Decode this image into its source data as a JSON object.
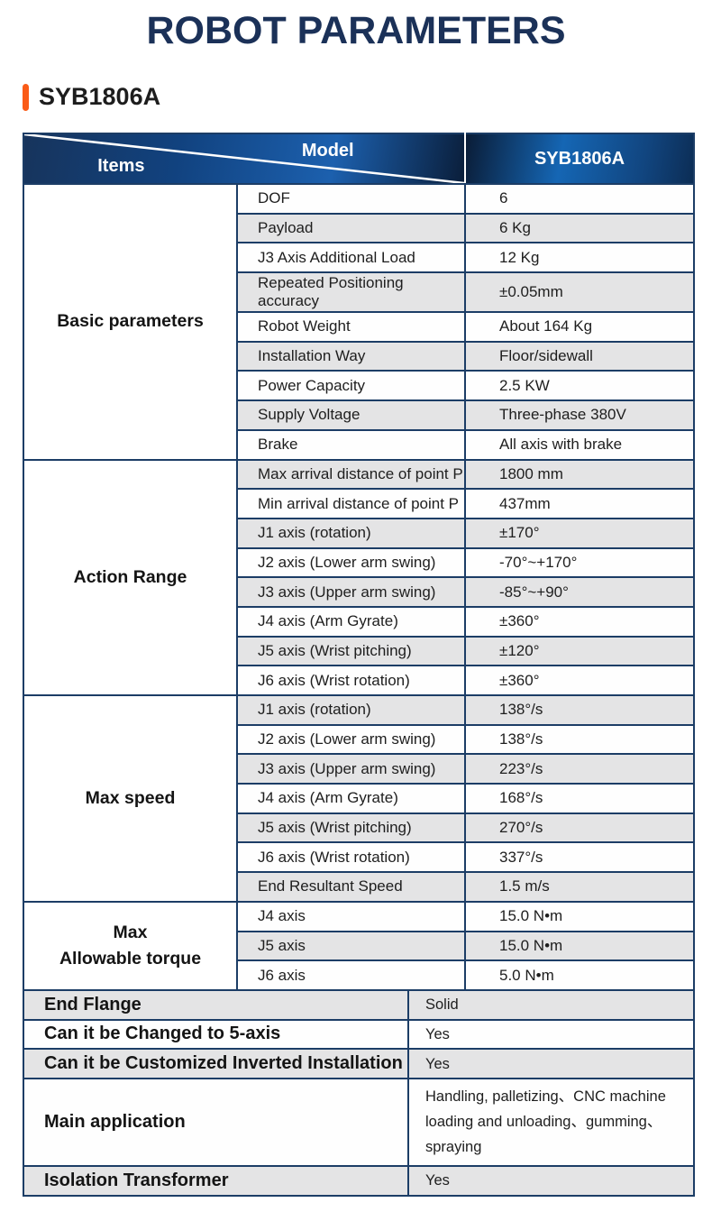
{
  "page": {
    "title": "ROBOT PARAMETERS",
    "section_heading": "SYB1806A"
  },
  "colors": {
    "accent_orange": "#fa5b17",
    "title_navy": "#1b3158",
    "border_navy": "#1c3d66",
    "stripe_gray": "#e4e4e5",
    "header_blue_bright": "#1c60ae",
    "header_blue_dark": "#0a1e3a"
  },
  "table": {
    "header": {
      "items_label": "Items",
      "model_label": "Model",
      "model_value": "SYB1806A"
    },
    "groups": [
      {
        "category": "Basic parameters",
        "rows": [
          {
            "item": "DOF",
            "value": "6"
          },
          {
            "item": "Payload",
            "value": "6 Kg"
          },
          {
            "item": "J3 Axis Additional Load",
            "value": "12 Kg"
          },
          {
            "item": "Repeated Positioning accuracy",
            "value": "±0.05mm"
          },
          {
            "item": "Robot Weight",
            "value": "About 164 Kg"
          },
          {
            "item": "Installation Way",
            "value": "Floor/sidewall"
          },
          {
            "item": "Power Capacity",
            "value": "2.5 KW"
          },
          {
            "item": "Supply Voltage",
            "value": "Three-phase 380V"
          },
          {
            "item": "Brake",
            "value": "All axis with brake"
          }
        ]
      },
      {
        "category": "Action Range",
        "rows": [
          {
            "item": "Max arrival distance of point P",
            "value": "1800 mm"
          },
          {
            "item": "Min arrival distance of point P",
            "value": "437mm"
          },
          {
            "item": "J1 axis (rotation)",
            "value": "±170°"
          },
          {
            "item": "J2 axis (Lower arm swing)",
            "value": "-70°~+170°"
          },
          {
            "item": "J3 axis (Upper arm swing)",
            "value": "-85°~+90°"
          },
          {
            "item": "J4 axis (Arm Gyrate)",
            "value": "±360°"
          },
          {
            "item": "J5 axis (Wrist pitching)",
            "value": "±120°"
          },
          {
            "item": "J6 axis (Wrist rotation)",
            "value": "±360°"
          }
        ]
      },
      {
        "category": "Max speed",
        "rows": [
          {
            "item": "J1 axis (rotation)",
            "value": "138°/s"
          },
          {
            "item": "J2 axis (Lower arm swing)",
            "value": "138°/s"
          },
          {
            "item": "J3 axis (Upper arm swing)",
            "value": "223°/s"
          },
          {
            "item": "J4 axis (Arm Gyrate)",
            "value": "168°/s"
          },
          {
            "item": "J5 axis (Wrist pitching)",
            "value": "270°/s"
          },
          {
            "item": "J6 axis (Wrist rotation)",
            "value": "337°/s"
          },
          {
            "item": "End Resultant Speed",
            "value": "1.5 m/s"
          }
        ]
      },
      {
        "category": "Max\nAllowable torque",
        "rows": [
          {
            "item": "J4 axis",
            "value": "15.0 N•m"
          },
          {
            "item": "J5 axis",
            "value": "15.0 N•m"
          },
          {
            "item": "J6 axis",
            "value": "5.0 N•m"
          }
        ]
      }
    ],
    "footer_rows": [
      {
        "item": "End Flange",
        "value": "Solid"
      },
      {
        "item": "Can it be Changed to 5-axis",
        "value": "Yes"
      },
      {
        "item": "Can it be Customized Inverted Installation",
        "value": "Yes"
      },
      {
        "item": "Main application",
        "value": "Handling, palletizing、CNC machine loading and unloading、gumming、spraying"
      },
      {
        "item": "Isolation Transformer",
        "value": "Yes"
      }
    ]
  }
}
